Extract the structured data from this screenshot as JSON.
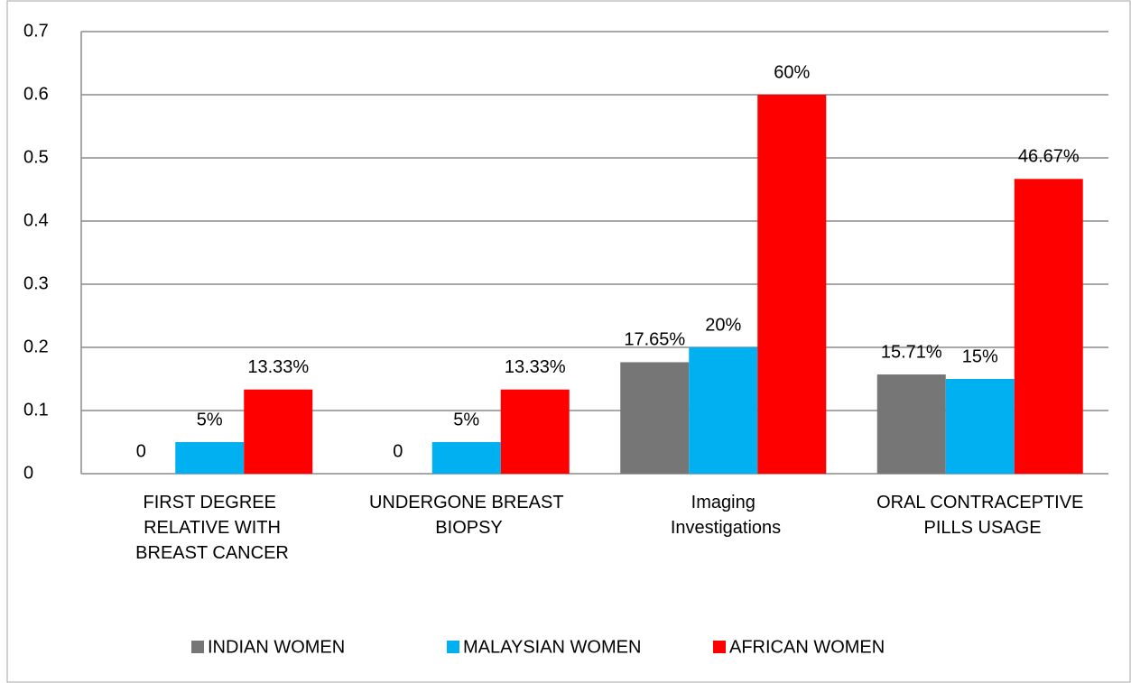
{
  "chart_data": {
    "type": "bar",
    "categories": [
      "FIRST DEGREE RELATIVE WITH BREAST CANCER",
      "UNDERGONE BREAST BIOPSY",
      "Imaging Investigations",
      "ORAL CONTRACEPTIVE PILLS USAGE"
    ],
    "series": [
      {
        "name": "INDIAN WOMEN",
        "color": "#767676",
        "values": [
          0,
          0,
          0.1765,
          0.1571
        ],
        "value_labels": [
          "0",
          "0",
          "17.65%",
          "15.71%"
        ]
      },
      {
        "name": "MALAYSIAN WOMEN",
        "color": "#00b0f0",
        "values": [
          0.05,
          0.05,
          0.2,
          0.15
        ],
        "value_labels": [
          "5%",
          "5%",
          "20%",
          "15%"
        ]
      },
      {
        "name": "AFRICAN WOMEN",
        "color": "#ff0000",
        "values": [
          0.1333,
          0.1333,
          0.6,
          0.4667
        ],
        "value_labels": [
          "13.33%",
          "13.33%",
          "60%",
          "46.67%"
        ]
      }
    ],
    "ylim": [
      0,
      0.7
    ],
    "yticks": [
      0,
      0.1,
      0.2,
      0.3,
      0.4,
      0.5,
      0.6,
      0.7
    ],
    "grid": true,
    "legend": "bottom"
  }
}
